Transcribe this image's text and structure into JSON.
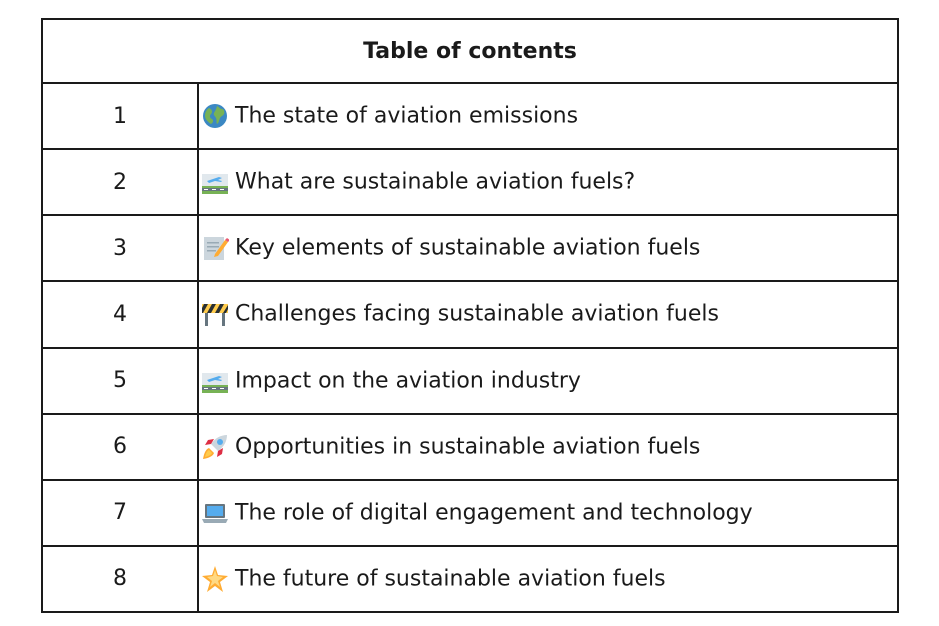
{
  "toc": {
    "heading": "Table of contents",
    "items": [
      {
        "number": "1",
        "icon": "globe-icon",
        "title": "The state of aviation emissions"
      },
      {
        "number": "2",
        "icon": "airport-icon",
        "title": "What are sustainable aviation fuels?"
      },
      {
        "number": "3",
        "icon": "memo-icon",
        "title": "Key elements of sustainable aviation fuels"
      },
      {
        "number": "4",
        "icon": "construction-barrier-icon",
        "title": "Challenges facing sustainable aviation fuels"
      },
      {
        "number": "5",
        "icon": "airport-icon",
        "title": "Impact on the aviation industry"
      },
      {
        "number": "6",
        "icon": "rocket-icon",
        "title": "Opportunities in sustainable aviation fuels"
      },
      {
        "number": "7",
        "icon": "laptop-icon",
        "title": "The role of digital engagement and technology"
      },
      {
        "number": "8",
        "icon": "glowing-star-icon",
        "title": "The future of sustainable aviation fuels"
      }
    ]
  }
}
